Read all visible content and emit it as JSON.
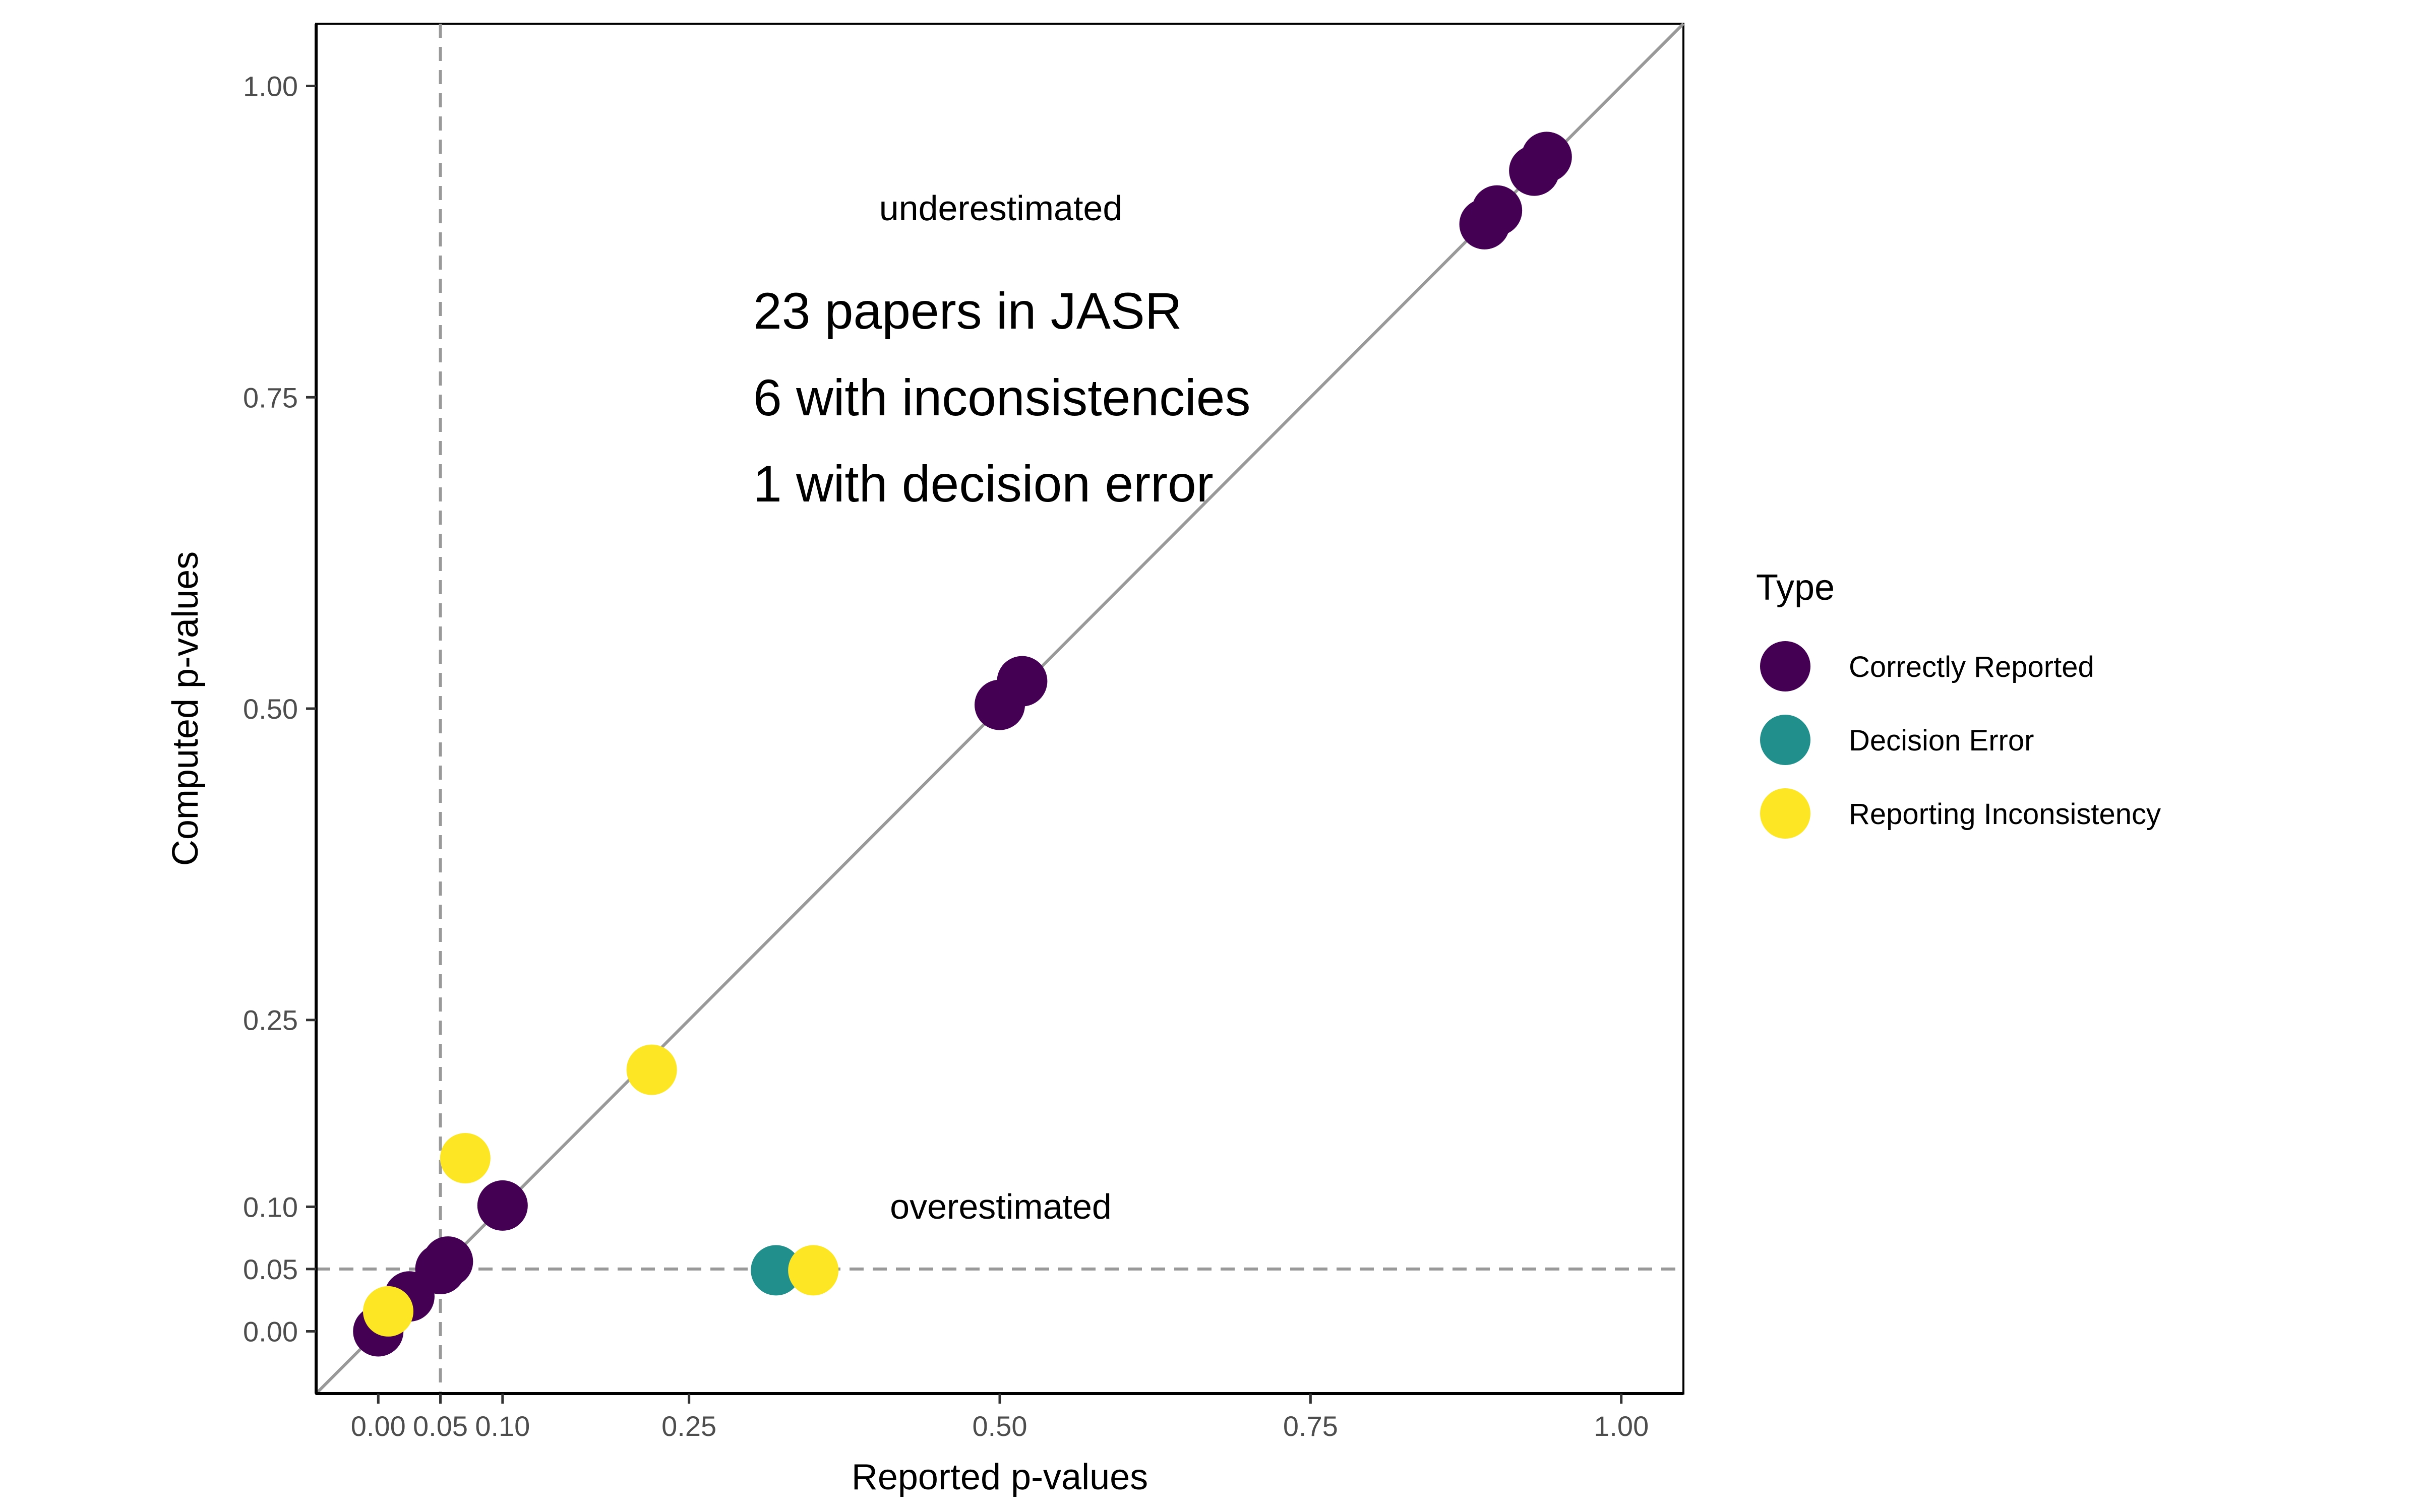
{
  "chart_data": {
    "type": "scatter",
    "title": "",
    "xlabel": "Reported p-values",
    "ylabel": "Computed p-values",
    "xlim": [
      -0.05,
      1.05
    ],
    "ylim": [
      -0.05,
      1.05
    ],
    "x_ticks": [
      0.0,
      0.05,
      0.1,
      0.25,
      0.5,
      0.75,
      1.0
    ],
    "x_tick_labels": [
      "0.00",
      "0.05",
      "0.10",
      "0.25",
      "0.50",
      "0.75",
      "1.00"
    ],
    "y_ticks": [
      0.0,
      0.05,
      0.1,
      0.25,
      0.5,
      0.75,
      1.0
    ],
    "y_tick_labels": [
      "0.00",
      "0.05",
      "0.10",
      "0.25",
      "0.50",
      "0.75",
      "1.00"
    ],
    "grid": false,
    "reference_lines": {
      "diagonal": "y = x",
      "dashed_vertical_x": 0.05,
      "dashed_horizontal_y": 0.05
    },
    "annotations": {
      "underestimated": "underestimated",
      "overestimated": "overestimated",
      "summary_1": "23 papers in JASR",
      "summary_2": "6 with inconsistencies",
      "summary_3": "1 with decision error"
    },
    "legend": {
      "title": "Type",
      "placement": "right",
      "entries": [
        {
          "name": "Correctly Reported",
          "color": "#440154"
        },
        {
          "name": "Decision Error",
          "color": "#21908C"
        },
        {
          "name": "Reporting Inconsistency",
          "color": "#FDE725"
        }
      ]
    },
    "series": [
      {
        "name": "Correctly Reported",
        "color": "#440154",
        "points": [
          {
            "x": 0.0,
            "y": 0.0
          },
          {
            "x": 0.025,
            "y": 0.028
          },
          {
            "x": 0.05,
            "y": 0.05
          },
          {
            "x": 0.056,
            "y": 0.056
          },
          {
            "x": 0.1,
            "y": 0.101
          },
          {
            "x": 0.5,
            "y": 0.503
          },
          {
            "x": 0.518,
            "y": 0.522
          },
          {
            "x": 0.89,
            "y": 0.889
          },
          {
            "x": 0.9,
            "y": 0.9
          },
          {
            "x": 0.93,
            "y": 0.932
          },
          {
            "x": 0.94,
            "y": 0.943
          }
        ]
      },
      {
        "name": "Decision Error",
        "color": "#21908C",
        "points": [
          {
            "x": 0.32,
            "y": 0.049
          }
        ]
      },
      {
        "name": "Reporting Inconsistency",
        "color": "#FDE725",
        "points": [
          {
            "x": 0.008,
            "y": 0.016
          },
          {
            "x": 0.07,
            "y": 0.139
          },
          {
            "x": 0.22,
            "y": 0.21
          },
          {
            "x": 0.35,
            "y": 0.049
          }
        ]
      }
    ]
  }
}
